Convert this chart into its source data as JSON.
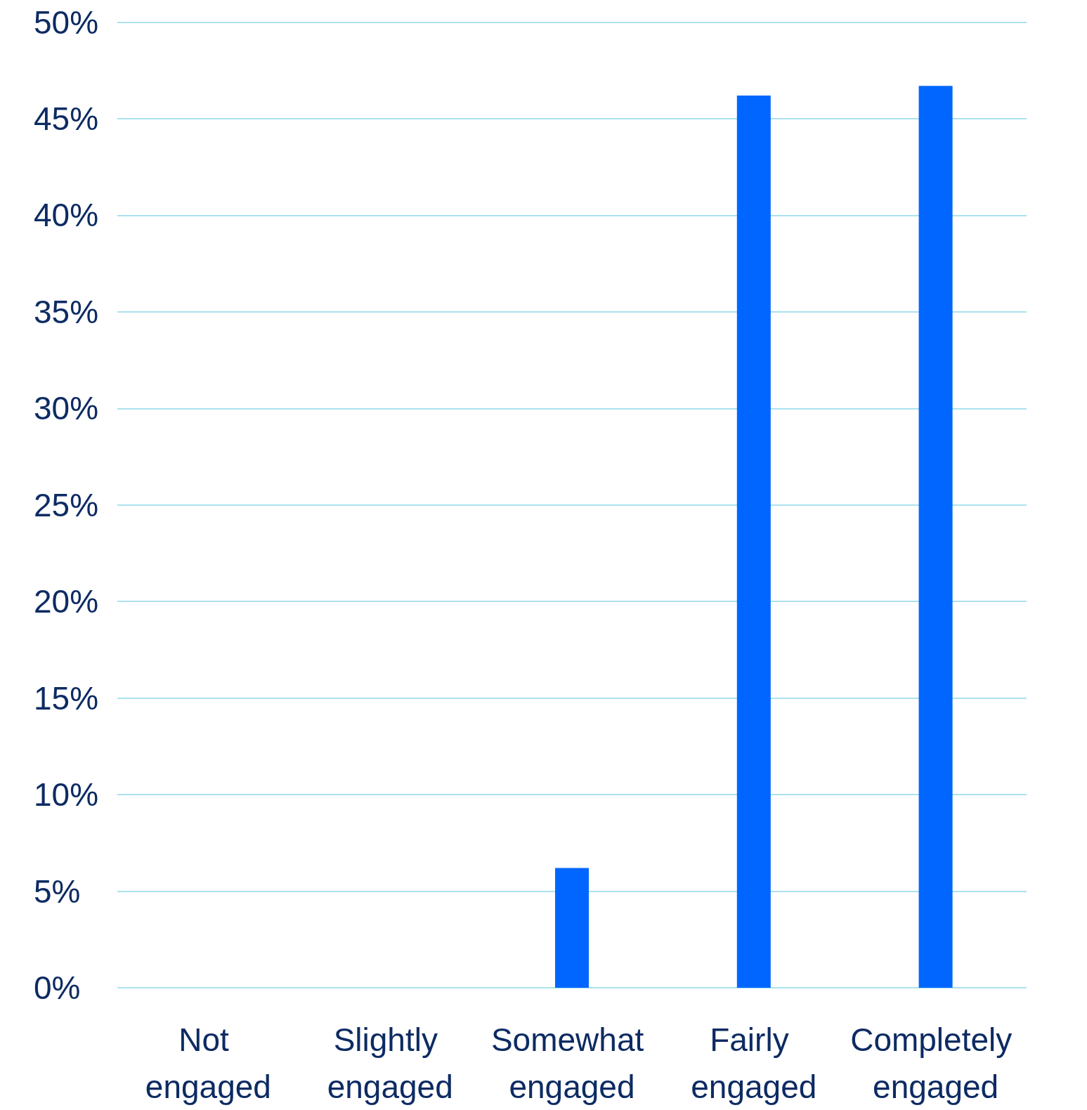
{
  "chart_data": {
    "type": "bar",
    "categories": [
      "Not engaged",
      "Slightly engaged",
      "Somewhat engaged",
      "Fairly engaged",
      "Completely engaged"
    ],
    "values": [
      0,
      0,
      6.2,
      46.2,
      46.7
    ],
    "color": "#0066ff",
    "ylim": [
      0,
      50
    ],
    "yticks": [
      {
        "value": 0,
        "label": "0%"
      },
      {
        "value": 5,
        "label": "5%"
      },
      {
        "value": 10,
        "label": "10%"
      },
      {
        "value": 15,
        "label": "15%"
      },
      {
        "value": 20,
        "label": "20%"
      },
      {
        "value": 25,
        "label": "25%"
      },
      {
        "value": 30,
        "label": "30%"
      },
      {
        "value": 35,
        "label": "35%"
      },
      {
        "value": 40,
        "label": "40%"
      },
      {
        "value": 45,
        "label": "45%"
      },
      {
        "value": 50,
        "label": "50%"
      }
    ],
    "grid": "y"
  }
}
